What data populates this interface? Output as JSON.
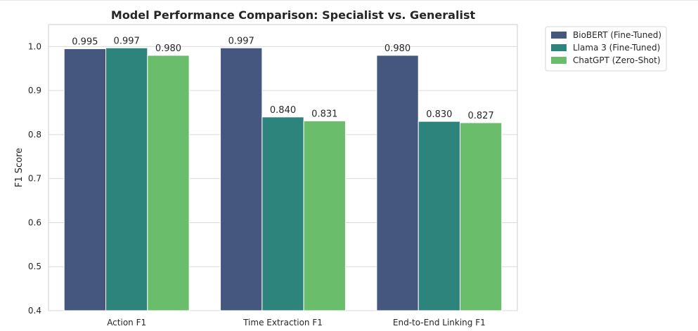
{
  "chart_data": {
    "type": "bar",
    "title": "Model Performance Comparison: Specialist vs. Generalist",
    "xlabel": "",
    "ylabel": "F1 Score",
    "ylim": [
      0.4,
      1.05
    ],
    "yticks": [
      "0.4",
      "0.5",
      "0.6",
      "0.7",
      "0.8",
      "0.9",
      "1.0"
    ],
    "grid": true,
    "legend_position": "outside top-right",
    "categories": [
      "Action F1",
      "Time Extraction F1",
      "End-to-End Linking F1"
    ],
    "series": [
      {
        "name": "BioBERT (Fine-Tuned)",
        "color": "#45567f",
        "values": [
          0.995,
          0.997,
          0.98
        ],
        "labels": [
          "0.995",
          "0.997",
          "0.980"
        ]
      },
      {
        "name": "Llama 3 (Fine-Tuned)",
        "color": "#2d847d",
        "values": [
          0.997,
          0.84,
          0.83
        ],
        "labels": [
          "0.997",
          "0.840",
          "0.830"
        ]
      },
      {
        "name": "ChatGPT (Zero-Shot)",
        "color": "#6abd6a",
        "values": [
          0.98,
          0.831,
          0.827
        ],
        "labels": [
          "0.980",
          "0.831",
          "0.827"
        ]
      }
    ]
  }
}
